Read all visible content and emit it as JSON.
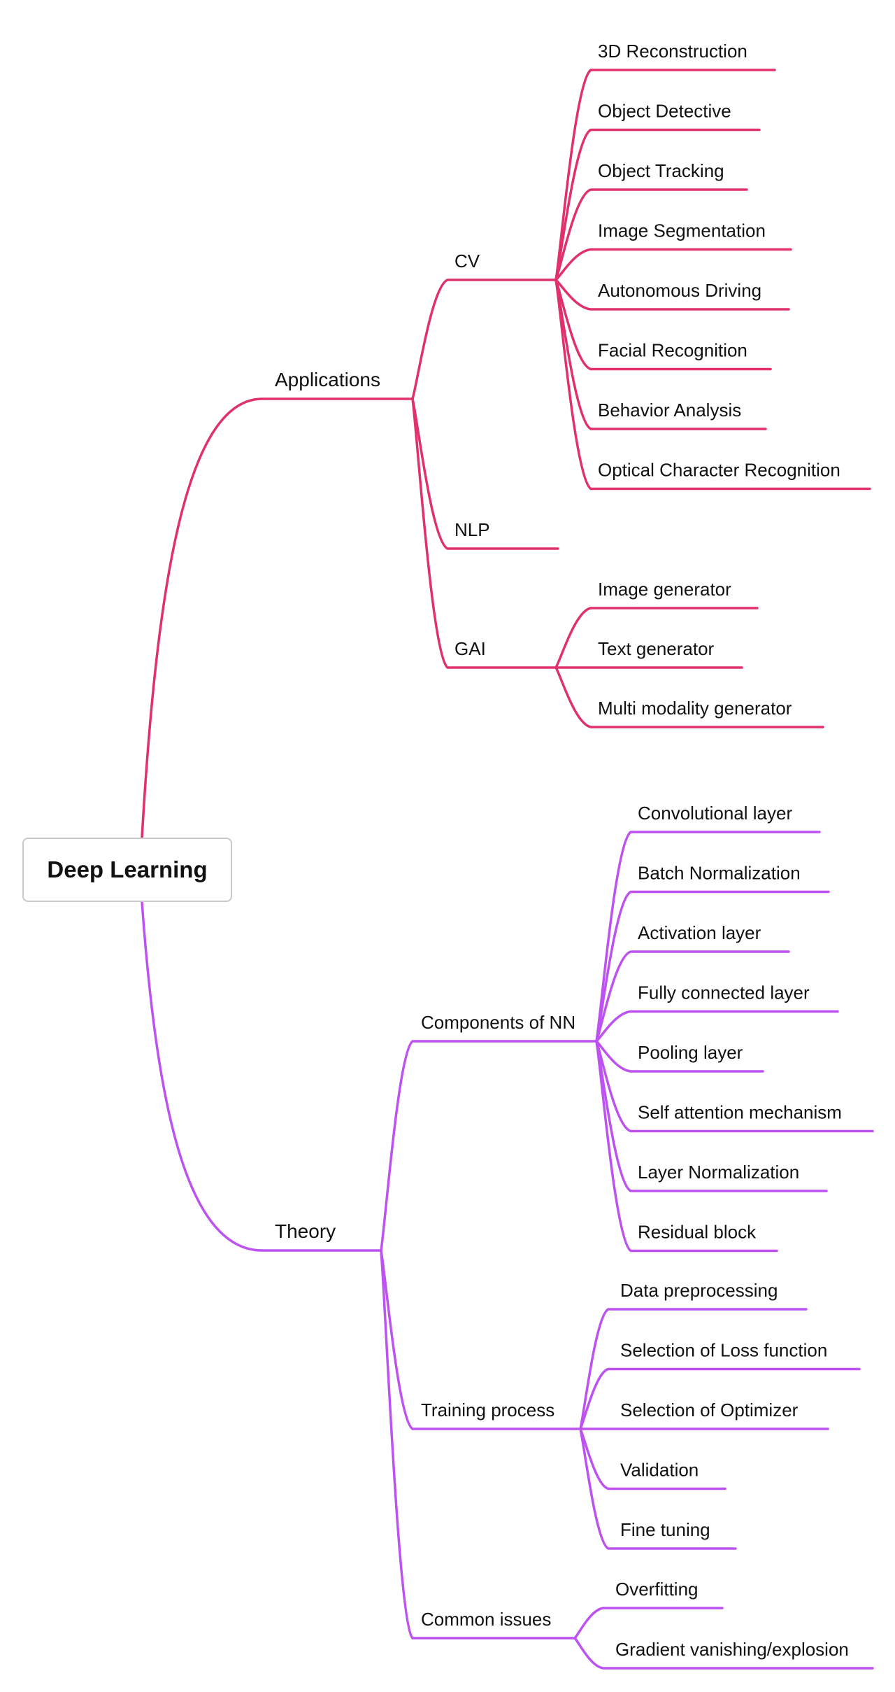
{
  "title": "Deep Learning",
  "colors": {
    "applications": "#e0306d",
    "theory": "#bd52f0",
    "root_border": "#c9c9c9",
    "text": "#111111"
  },
  "branches": [
    {
      "key": "applications",
      "label": "Applications",
      "children": [
        {
          "label": "CV",
          "children": [
            "3D Reconstruction",
            "Object Detective",
            "Object Tracking",
            "Image Segmentation",
            "Autonomous Driving",
            "Facial Recognition",
            "Behavior Analysis",
            "Optical Character Recognition"
          ]
        },
        {
          "label": "NLP",
          "children": []
        },
        {
          "label": "GAI",
          "children": [
            "Image generator",
            "Text generator",
            "Multi modality generator"
          ]
        }
      ]
    },
    {
      "key": "theory",
      "label": "Theory",
      "children": [
        {
          "label": "Components of NN",
          "children": [
            "Convolutional layer",
            "Batch Normalization",
            "Activation layer",
            "Fully connected layer",
            "Pooling layer",
            "Self attention mechanism",
            "Layer Normalization",
            "Residual block"
          ]
        },
        {
          "label": "Training process",
          "children": [
            "Data preprocessing",
            "Selection of Loss function",
            "Selection of Optimizer",
            "Validation",
            "Fine tuning"
          ]
        },
        {
          "label": "Common issues",
          "children": [
            "Overfitting",
            "Gradient vanishing/explosion"
          ]
        }
      ]
    }
  ]
}
